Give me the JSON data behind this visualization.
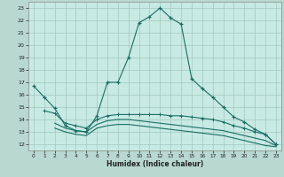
{
  "xlabel": "Humidex (Indice chaleur)",
  "bg_color": "#b8d8d0",
  "plot_bg_color": "#c8eae4",
  "grid_color": "#a0c8c0",
  "line_color": "#1a6e64",
  "xlim": [
    -0.5,
    23.5
  ],
  "ylim": [
    11.5,
    23.5
  ],
  "xticks": [
    0,
    1,
    2,
    3,
    4,
    5,
    6,
    7,
    8,
    9,
    10,
    11,
    12,
    13,
    14,
    15,
    16,
    17,
    18,
    19,
    20,
    21,
    22,
    23
  ],
  "yticks": [
    12,
    13,
    14,
    15,
    16,
    17,
    18,
    19,
    20,
    21,
    22,
    23
  ],
  "curve1_x": [
    0,
    1,
    2,
    3,
    4,
    5,
    6,
    7,
    8,
    9,
    10,
    11,
    12,
    13,
    14,
    15,
    16,
    17,
    18,
    19,
    20,
    21,
    22,
    23
  ],
  "curve1_y": [
    16.7,
    15.8,
    14.9,
    13.5,
    13.1,
    13.0,
    14.3,
    17.0,
    17.0,
    19.0,
    21.8,
    22.3,
    23.0,
    22.2,
    21.7,
    17.3,
    16.5,
    15.8,
    15.0,
    14.2,
    13.8,
    13.2,
    12.8,
    12.0
  ],
  "curve2_x": [
    1,
    2,
    3,
    4,
    5,
    6,
    7,
    8,
    9,
    10,
    11,
    12,
    13,
    14,
    15,
    16,
    17,
    18,
    19,
    20,
    21,
    22,
    23
  ],
  "curve2_y": [
    14.7,
    14.5,
    13.7,
    13.5,
    13.3,
    14.0,
    14.3,
    14.4,
    14.4,
    14.4,
    14.4,
    14.4,
    14.3,
    14.3,
    14.2,
    14.1,
    14.0,
    13.8,
    13.5,
    13.3,
    13.0,
    12.8,
    12.0
  ],
  "curve3_x": [
    2,
    3,
    4,
    5,
    6,
    7,
    8,
    9,
    10,
    11,
    12,
    13,
    14,
    15,
    16,
    17,
    18,
    19,
    20,
    21,
    22,
    23
  ],
  "curve3_y": [
    13.7,
    13.3,
    13.1,
    13.0,
    13.6,
    13.9,
    14.0,
    14.0,
    13.9,
    13.8,
    13.7,
    13.6,
    13.5,
    13.4,
    13.3,
    13.2,
    13.1,
    12.9,
    12.7,
    12.5,
    12.3,
    11.9
  ],
  "curve4_x": [
    2,
    3,
    4,
    5,
    6,
    7,
    8,
    9,
    10,
    11,
    12,
    13,
    14,
    15,
    16,
    17,
    18,
    19,
    20,
    21,
    22,
    23
  ],
  "curve4_y": [
    13.3,
    13.0,
    12.8,
    12.7,
    13.3,
    13.5,
    13.6,
    13.6,
    13.5,
    13.4,
    13.3,
    13.2,
    13.1,
    13.0,
    12.9,
    12.8,
    12.7,
    12.5,
    12.3,
    12.1,
    11.9,
    11.8
  ]
}
